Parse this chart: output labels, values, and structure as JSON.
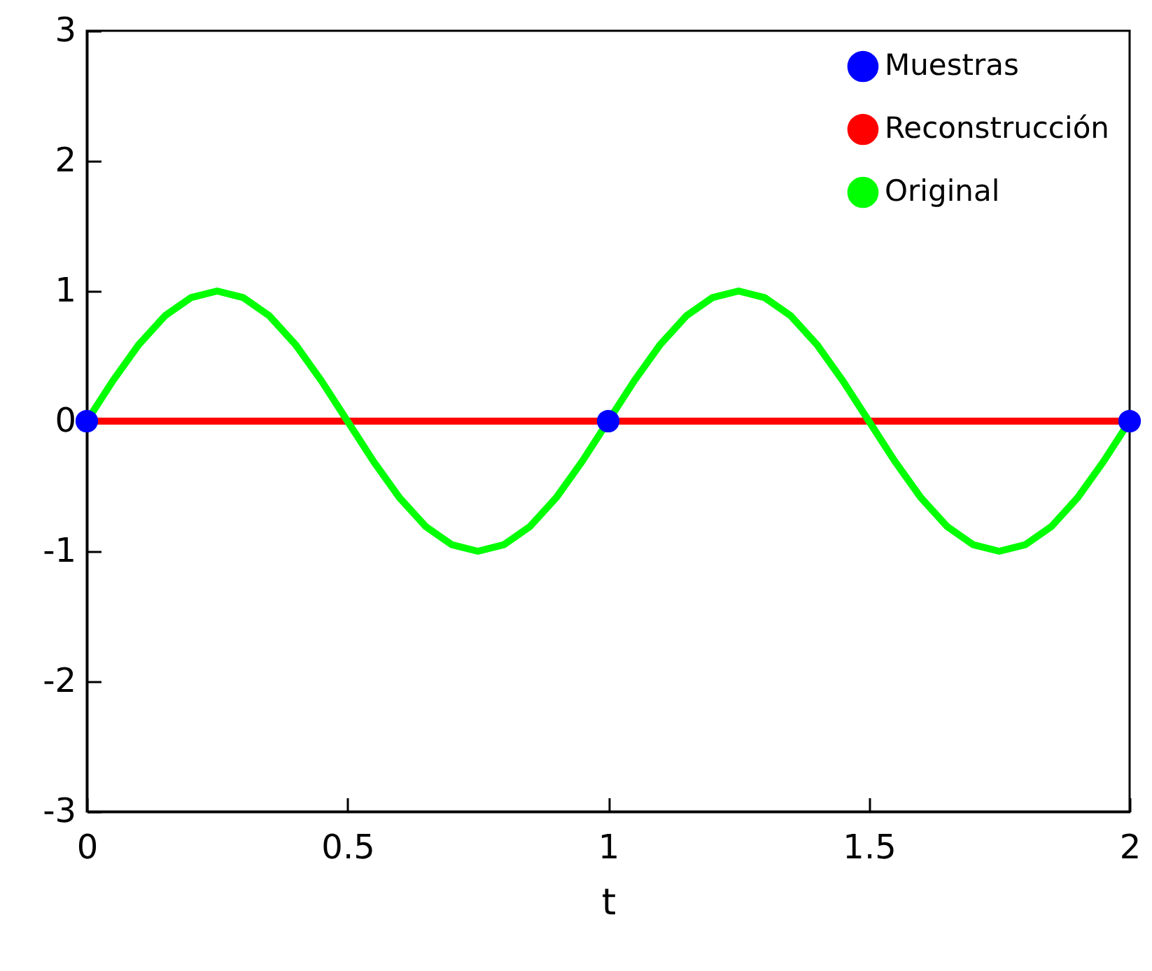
{
  "chart_data": {
    "type": "line",
    "xlabel": "t",
    "xlim": [
      0,
      2
    ],
    "xticks": [
      0,
      0.5,
      1,
      1.5,
      2
    ],
    "ylim": [
      -3,
      3
    ],
    "yticks": [
      -3,
      -2,
      -1,
      0,
      1,
      2,
      3
    ],
    "grid": false,
    "legend": "top right",
    "line_style": "solid",
    "series": [
      {
        "name": "Muestras",
        "type": "scatter",
        "marker": "circle",
        "color": "#0000ff",
        "x": [
          0,
          1,
          2
        ],
        "values": [
          0,
          0,
          0
        ]
      },
      {
        "name": "Reconstrucción",
        "color": "#ff0000",
        "x": [
          0,
          2
        ],
        "values": [
          0,
          0
        ]
      },
      {
        "name": "Original",
        "color": "#00ff00",
        "x": [
          0,
          0.05,
          0.1,
          0.15,
          0.2,
          0.25,
          0.3,
          0.35,
          0.4,
          0.45,
          0.5,
          0.55,
          0.6,
          0.65,
          0.7,
          0.75,
          0.8,
          0.85,
          0.9,
          0.95,
          1,
          1.05,
          1.1,
          1.15,
          1.2,
          1.25,
          1.3,
          1.35,
          1.4,
          1.45,
          1.5,
          1.55,
          1.6,
          1.65,
          1.7,
          1.75,
          1.8,
          1.85,
          1.9,
          1.95,
          2
        ],
        "values": [
          0,
          0.31,
          0.59,
          0.81,
          0.95,
          1,
          0.95,
          0.81,
          0.59,
          0.31,
          0,
          -0.31,
          -0.59,
          -0.81,
          -0.95,
          -1,
          -0.95,
          -0.81,
          -0.59,
          -0.31,
          0,
          0.31,
          0.59,
          0.81,
          0.95,
          1,
          0.95,
          0.81,
          0.59,
          0.31,
          0,
          -0.31,
          -0.59,
          -0.81,
          -0.95,
          -1,
          -0.95,
          -0.81,
          -0.59,
          -0.31,
          0
        ]
      }
    ]
  }
}
